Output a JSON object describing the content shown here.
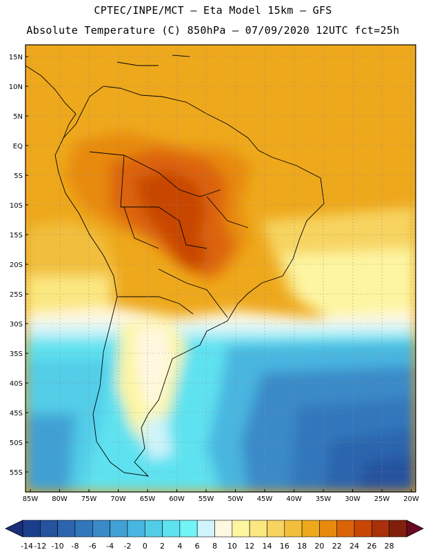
{
  "title": {
    "line1": "CPTEC/INPE/MCT –  Eta Model 15km – GFS",
    "line2": "Absolute Temperature (C) 850hPa – 07/09/2020 12UTC fct=25h"
  },
  "map": {
    "lat_labels": [
      "15N",
      "10N",
      "5N",
      "EQ",
      "5S",
      "10S",
      "15S",
      "20S",
      "25S",
      "30S",
      "35S",
      "40S",
      "45S",
      "50S",
      "55S"
    ],
    "lon_labels": [
      "85W",
      "80W",
      "75W",
      "70W",
      "65W",
      "60W",
      "55W",
      "50W",
      "45W",
      "40W",
      "35W",
      "30W",
      "25W",
      "20W"
    ]
  },
  "colorbar": {
    "labels": [
      "-14",
      "-12",
      "-10",
      "-8",
      "-6",
      "-4",
      "-2",
      "0",
      "2",
      "4",
      "6",
      "8",
      "10",
      "12",
      "14",
      "16",
      "18",
      "20",
      "22",
      "24",
      "26",
      "28"
    ],
    "colors": [
      "#1c3d8c",
      "#26529e",
      "#2c65ae",
      "#3277bc",
      "#3a8ac8",
      "#41a0d4",
      "#48b6e0",
      "#52cde8",
      "#5fe2f0",
      "#72f4f7",
      "#cff4fb",
      "#fff8e0",
      "#fdf5a0",
      "#fbe780",
      "#f7d460",
      "#f2bf3c",
      "#eea81c",
      "#e88a10",
      "#dc6408",
      "#c84606",
      "#a8300a",
      "#80200c"
    ],
    "under_color": "#1a2f7a",
    "over_color": "#6a0a20"
  }
}
